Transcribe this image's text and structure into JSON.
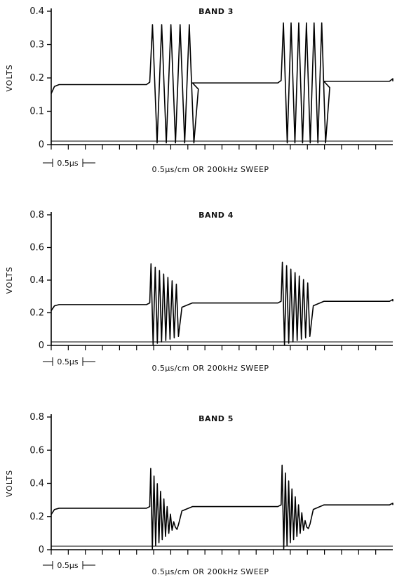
{
  "chart_data": [
    {
      "type": "line",
      "title": "BAND 3",
      "ylabel": "VOLTS",
      "xlabel": "0.5μs/cm OR 200kHz SWEEP",
      "scale_marker": "0.5μs",
      "ylim": [
        0,
        0.4
      ],
      "yticks": [
        "0",
        "0.1",
        "0.2",
        "0.3",
        "0.4"
      ],
      "grid": false,
      "series": [
        {
          "baseline_segments": [
            [
              0.0,
              1.5,
              0.18
            ],
            [
              2.2,
              3.5,
              0.185
            ],
            [
              4.2,
              5.2,
              0.19
            ]
          ],
          "bursts": [
            {
              "start": 1.5,
              "end": 2.2,
              "peak": 0.36,
              "cycles": 5,
              "decay": 0.0
            },
            {
              "start": 3.5,
              "end": 4.2,
              "peak": 0.365,
              "cycles": 6,
              "decay": 0.0
            }
          ],
          "xmax": 5.2
        }
      ]
    },
    {
      "type": "line",
      "title": "BAND 4",
      "ylabel": "VOLTS",
      "xlabel": "0.5μs/cm OR 200kHz SWEEP",
      "scale_marker": "0.5μs",
      "ylim": [
        0,
        0.8
      ],
      "yticks": [
        "0",
        "0.2",
        "0.4",
        "0.6",
        "0.8"
      ],
      "grid": false,
      "series": [
        {
          "baseline_segments": [
            [
              0.0,
              1.5,
              0.25
            ],
            [
              2.2,
              3.5,
              0.26
            ],
            [
              4.2,
              5.2,
              0.27
            ]
          ],
          "bursts": [
            {
              "start": 1.5,
              "end": 1.95,
              "peak": 0.5,
              "cycles": 7,
              "decay": 0.25
            },
            {
              "start": 3.5,
              "end": 3.95,
              "peak": 0.51,
              "cycles": 7,
              "decay": 0.25
            }
          ],
          "xmax": 5.2
        }
      ]
    },
    {
      "type": "line",
      "title": "BAND 5",
      "ylabel": "VOLTS",
      "xlabel": "0.5μs/cm OR 200kHz SWEEP",
      "scale_marker": "0.5μs",
      "ylim": [
        0,
        0.8
      ],
      "yticks": [
        "0",
        "0.2",
        "0.4",
        "0.6",
        "0.8"
      ],
      "grid": false,
      "series": [
        {
          "baseline_segments": [
            [
              0.0,
              1.5,
              0.25
            ],
            [
              2.2,
              3.5,
              0.26
            ],
            [
              4.2,
              5.2,
              0.27
            ]
          ],
          "bursts": [
            {
              "start": 1.5,
              "end": 1.95,
              "peak": 0.49,
              "cycles": 9,
              "decay": 0.75
            },
            {
              "start": 3.5,
              "end": 3.95,
              "peak": 0.51,
              "cycles": 9,
              "decay": 0.75
            }
          ],
          "xmax": 5.2
        }
      ]
    }
  ]
}
